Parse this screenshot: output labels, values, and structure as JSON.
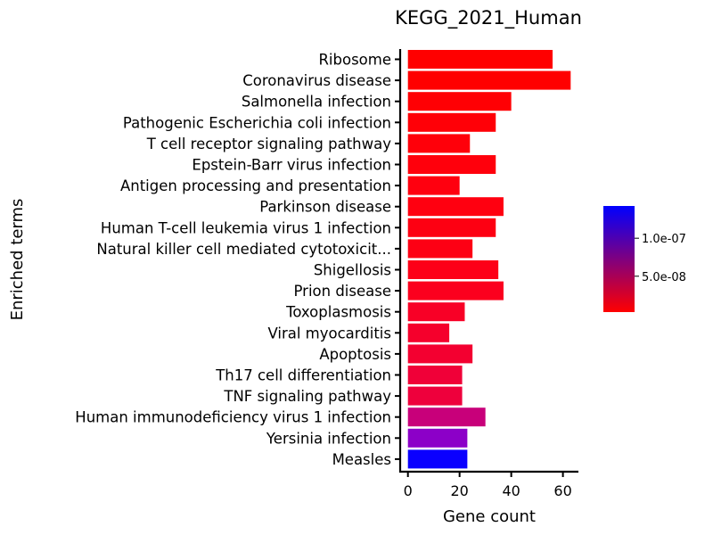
{
  "chart_data": {
    "type": "bar",
    "orientation": "horizontal",
    "title": "KEGG_2021_Human",
    "xlabel": "Gene count",
    "ylabel": "Enriched terms",
    "xlim": [
      -3,
      66
    ],
    "xticks": [
      "0",
      "20",
      "40",
      "60"
    ],
    "xtick_values": [
      0,
      20,
      40,
      60
    ],
    "grid": false,
    "categories": [
      "Ribosome",
      "Coronavirus disease",
      "Salmonella infection",
      "Pathogenic Escherichia coli infection",
      "T cell receptor signaling pathway",
      "Epstein-Barr virus infection",
      "Antigen processing and presentation",
      "Parkinson disease",
      "Human T-cell leukemia virus 1 infection",
      "Natural killer cell mediated cytotoxicit...",
      "Shigellosis",
      "Prion disease",
      "Toxoplasmosis",
      "Viral myocarditis",
      "Apoptosis",
      "Th17 cell differentiation",
      "TNF signaling pathway",
      "Human immunodeficiency virus 1 infection",
      "Yersinia infection",
      "Measles"
    ],
    "values": [
      56,
      63,
      40,
      34,
      24,
      34,
      20,
      37,
      34,
      25,
      35,
      37,
      22,
      16,
      25,
      21,
      21,
      30,
      23,
      23
    ],
    "bar_colors": [
      "#ff0000",
      "#ff0000",
      "#ff0004",
      "#ff0007",
      "#ff000a",
      "#ff000c",
      "#ff000f",
      "#ff0010",
      "#fd0012",
      "#fd0014",
      "#fd0018",
      "#fb001e",
      "#f80026",
      "#f5002c",
      "#f30030",
      "#f00038",
      "#ee003c",
      "#c8007a",
      "#8c00c8",
      "#0a00ff"
    ],
    "colorbar": {
      "colors": [
        "#ff0000",
        "#0000ff"
      ],
      "ticks": [
        "1.0e-07",
        "5.0e-08"
      ],
      "tick_fractions": [
        0.696,
        0.338
      ]
    }
  }
}
